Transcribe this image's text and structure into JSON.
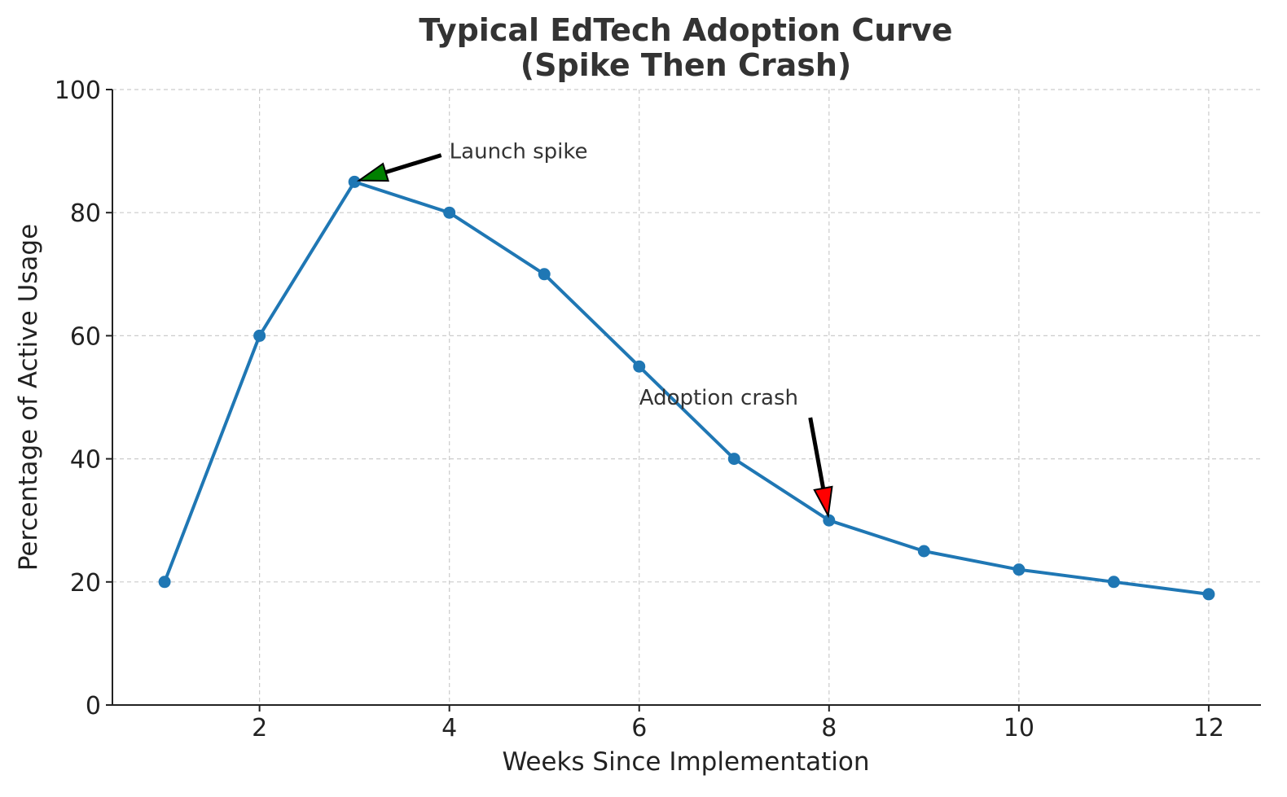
{
  "chart_data": {
    "type": "line",
    "title": [
      "Typical EdTech Adoption Curve",
      "(Spike Then Crash)"
    ],
    "xlabel": "Weeks Since Implementation",
    "ylabel": "Percentage of Active Usage",
    "x": [
      1,
      2,
      3,
      4,
      5,
      6,
      7,
      8,
      9,
      10,
      11,
      12
    ],
    "series": [
      {
        "values": [
          20,
          60,
          85,
          80,
          70,
          55,
          40,
          30,
          25,
          22,
          20,
          18
        ],
        "color": "#1f77b4"
      }
    ],
    "xlim": [
      0.45,
      12.55
    ],
    "ylim": [
      0,
      100
    ],
    "xticks": [
      2,
      4,
      6,
      8,
      10,
      12
    ],
    "yticks": [
      0,
      20,
      40,
      60,
      80,
      100
    ],
    "grid": true,
    "annotations": [
      {
        "text": "Launch spike",
        "point": [
          3,
          85
        ],
        "text_at": [
          4,
          90
        ],
        "color": "#008000"
      },
      {
        "text": "Adoption crash",
        "point": [
          8,
          30
        ],
        "text_at": [
          6,
          50
        ],
        "color": "#ff0000"
      }
    ]
  }
}
